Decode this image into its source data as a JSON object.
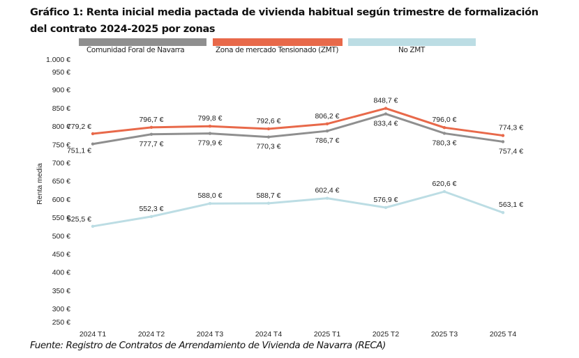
{
  "header": {
    "title_line1": "Gráfico 1: Renta inicial media pactada de vivienda habitual según trimestre de formalización",
    "title_line2": "del contrato 2024-2025 por zonas"
  },
  "footer": {
    "source": "Fuente: Registro de Contratos de Arrendamiento de Vivienda de Navarra (RECA)"
  },
  "chart_data": {
    "type": "line",
    "title": "Gráfico 1: Renta inicial media pactada de vivienda habitual según trimestre de formalización del contrato 2024-2025 por zonas",
    "xlabel": "",
    "ylabel": "Renta media",
    "ylim": [
      250,
      1000
    ],
    "yticks": [
      250,
      300,
      350,
      400,
      450,
      500,
      550,
      600,
      650,
      700,
      750,
      800,
      850,
      900,
      950,
      1000
    ],
    "ytick_labels": [
      "250 €",
      "300 €",
      "350 €",
      "400 €",
      "450 €",
      "500 €",
      "550 €",
      "600 €",
      "650 €",
      "700 €",
      "750 €",
      "800 €",
      "850 €",
      "900 €",
      "950 €",
      "1.000 €"
    ],
    "categories": [
      "2024 T1",
      "2024 T2",
      "2024 T3",
      "2024 T4",
      "2025 T1",
      "2025 T2",
      "2025 T3",
      "2025 T4"
    ],
    "grid": false,
    "legend_position": "top",
    "series": [
      {
        "name": "Comunidad Foral de Navarra",
        "color": "#8f8f8f",
        "values": [
          751.1,
          777.7,
          779.9,
          770.3,
          786.7,
          833.4,
          780.3,
          757.4
        ],
        "labels": [
          "751,1 €",
          "777,7 €",
          "779,9 €",
          "770,3 €",
          "786,7 €",
          "833,4 €",
          "780,3 €",
          "757,4 €"
        ],
        "label_side": [
          "below",
          "below",
          "below",
          "below",
          "below",
          "below",
          "below",
          "below"
        ]
      },
      {
        "name": "Zona de mercado Tensionado (ZMT)",
        "color": "#e8694a",
        "values": [
          779.2,
          796.7,
          799.8,
          792.6,
          806.2,
          848.7,
          796.0,
          774.3
        ],
        "labels": [
          "779,2 €",
          "796,7 €",
          "799,8 €",
          "792,6 €",
          "806,2 €",
          "848,7 €",
          "796,0 €",
          "774,3 €"
        ],
        "label_side": [
          "above",
          "above",
          "above",
          "above",
          "above",
          "above",
          "above",
          "above"
        ]
      },
      {
        "name": "No ZMT",
        "color": "#bcdde4",
        "values": [
          525.5,
          552.3,
          588.0,
          588.7,
          602.4,
          576.9,
          620.6,
          563.1
        ],
        "labels": [
          "525,5 €",
          "552,3 €",
          "588,0 €",
          "588,7 €",
          "602,4 €",
          "576,9 €",
          "620,6 €",
          "563,1 €"
        ],
        "label_side": [
          "above",
          "above",
          "above",
          "above",
          "above",
          "above",
          "above",
          "above"
        ]
      }
    ]
  }
}
